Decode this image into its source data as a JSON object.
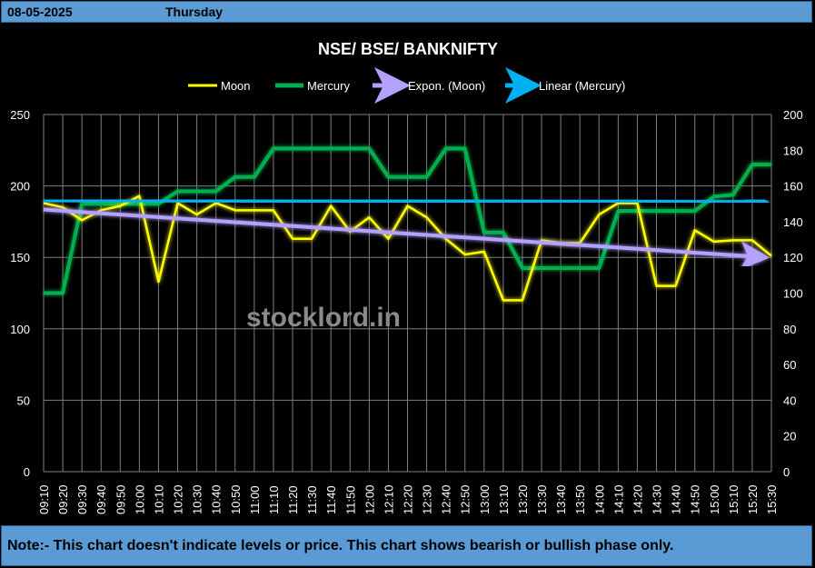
{
  "header": {
    "date": "08-05-2025",
    "day": "Thursday"
  },
  "footer": {
    "note": "Note:- This chart doesn't indicate levels or price. This chart shows bearish or bullish phase only."
  },
  "watermark": "stocklord.in",
  "colors": {
    "moon": "#ffff00",
    "mercury": "#00b050",
    "expon": "#b4a0ff",
    "linear": "#00b0f0",
    "grid": "#7f7f7f",
    "bar": "#5b9bd5"
  },
  "chart_data": {
    "type": "line",
    "title": "NSE/ BSE/ BANKNIFTY",
    "legend_position": "top",
    "grid": true,
    "categories": [
      "09:10",
      "09:20",
      "09:30",
      "09:40",
      "09:50",
      "10:00",
      "10:10",
      "10:20",
      "10:30",
      "10:40",
      "10:50",
      "11:00",
      "11:10",
      "11:20",
      "11:30",
      "11:40",
      "11:50",
      "12:00",
      "12:10",
      "12:20",
      "12:30",
      "12:40",
      "12:50",
      "13:00",
      "13:10",
      "13:20",
      "13:30",
      "13:40",
      "13:50",
      "14:00",
      "14:10",
      "14:20",
      "14:30",
      "14:40",
      "14:50",
      "15:00",
      "15:10",
      "15:20",
      "15:30"
    ],
    "y_left": {
      "min": 0,
      "max": 250,
      "ticks": [
        0,
        50,
        100,
        150,
        200,
        250
      ]
    },
    "y_right": {
      "min": 0,
      "max": 200,
      "ticks": [
        0,
        20,
        40,
        60,
        80,
        100,
        120,
        140,
        160,
        180,
        200
      ]
    },
    "series": [
      {
        "name": "Moon",
        "axis": "left",
        "values": [
          188,
          185,
          176,
          183,
          186,
          193,
          133,
          188,
          180,
          188,
          183,
          183,
          183,
          163,
          163,
          186,
          168,
          178,
          163,
          186,
          178,
          163,
          152,
          154,
          120,
          120,
          162,
          160,
          160,
          180,
          188,
          188,
          130,
          130,
          169,
          161,
          162,
          162,
          151
        ]
      },
      {
        "name": "Mercury",
        "axis": "right",
        "values": [
          100,
          100,
          150,
          150,
          150,
          150,
          150,
          157,
          157,
          157,
          165,
          165,
          181,
          181,
          181,
          181,
          181,
          181,
          165,
          165,
          165,
          181,
          181,
          134,
          134,
          114,
          114,
          114,
          114,
          114,
          146,
          146,
          146,
          146,
          146,
          154,
          155,
          172,
          172
        ]
      }
    ],
    "trendlines": [
      {
        "name": "Expon. (Moon)",
        "axis": "left",
        "start": 183.5,
        "end": 150.5
      },
      {
        "name": "Linear (Mercury)",
        "axis": "right",
        "start": 152,
        "end": 151
      }
    ]
  }
}
